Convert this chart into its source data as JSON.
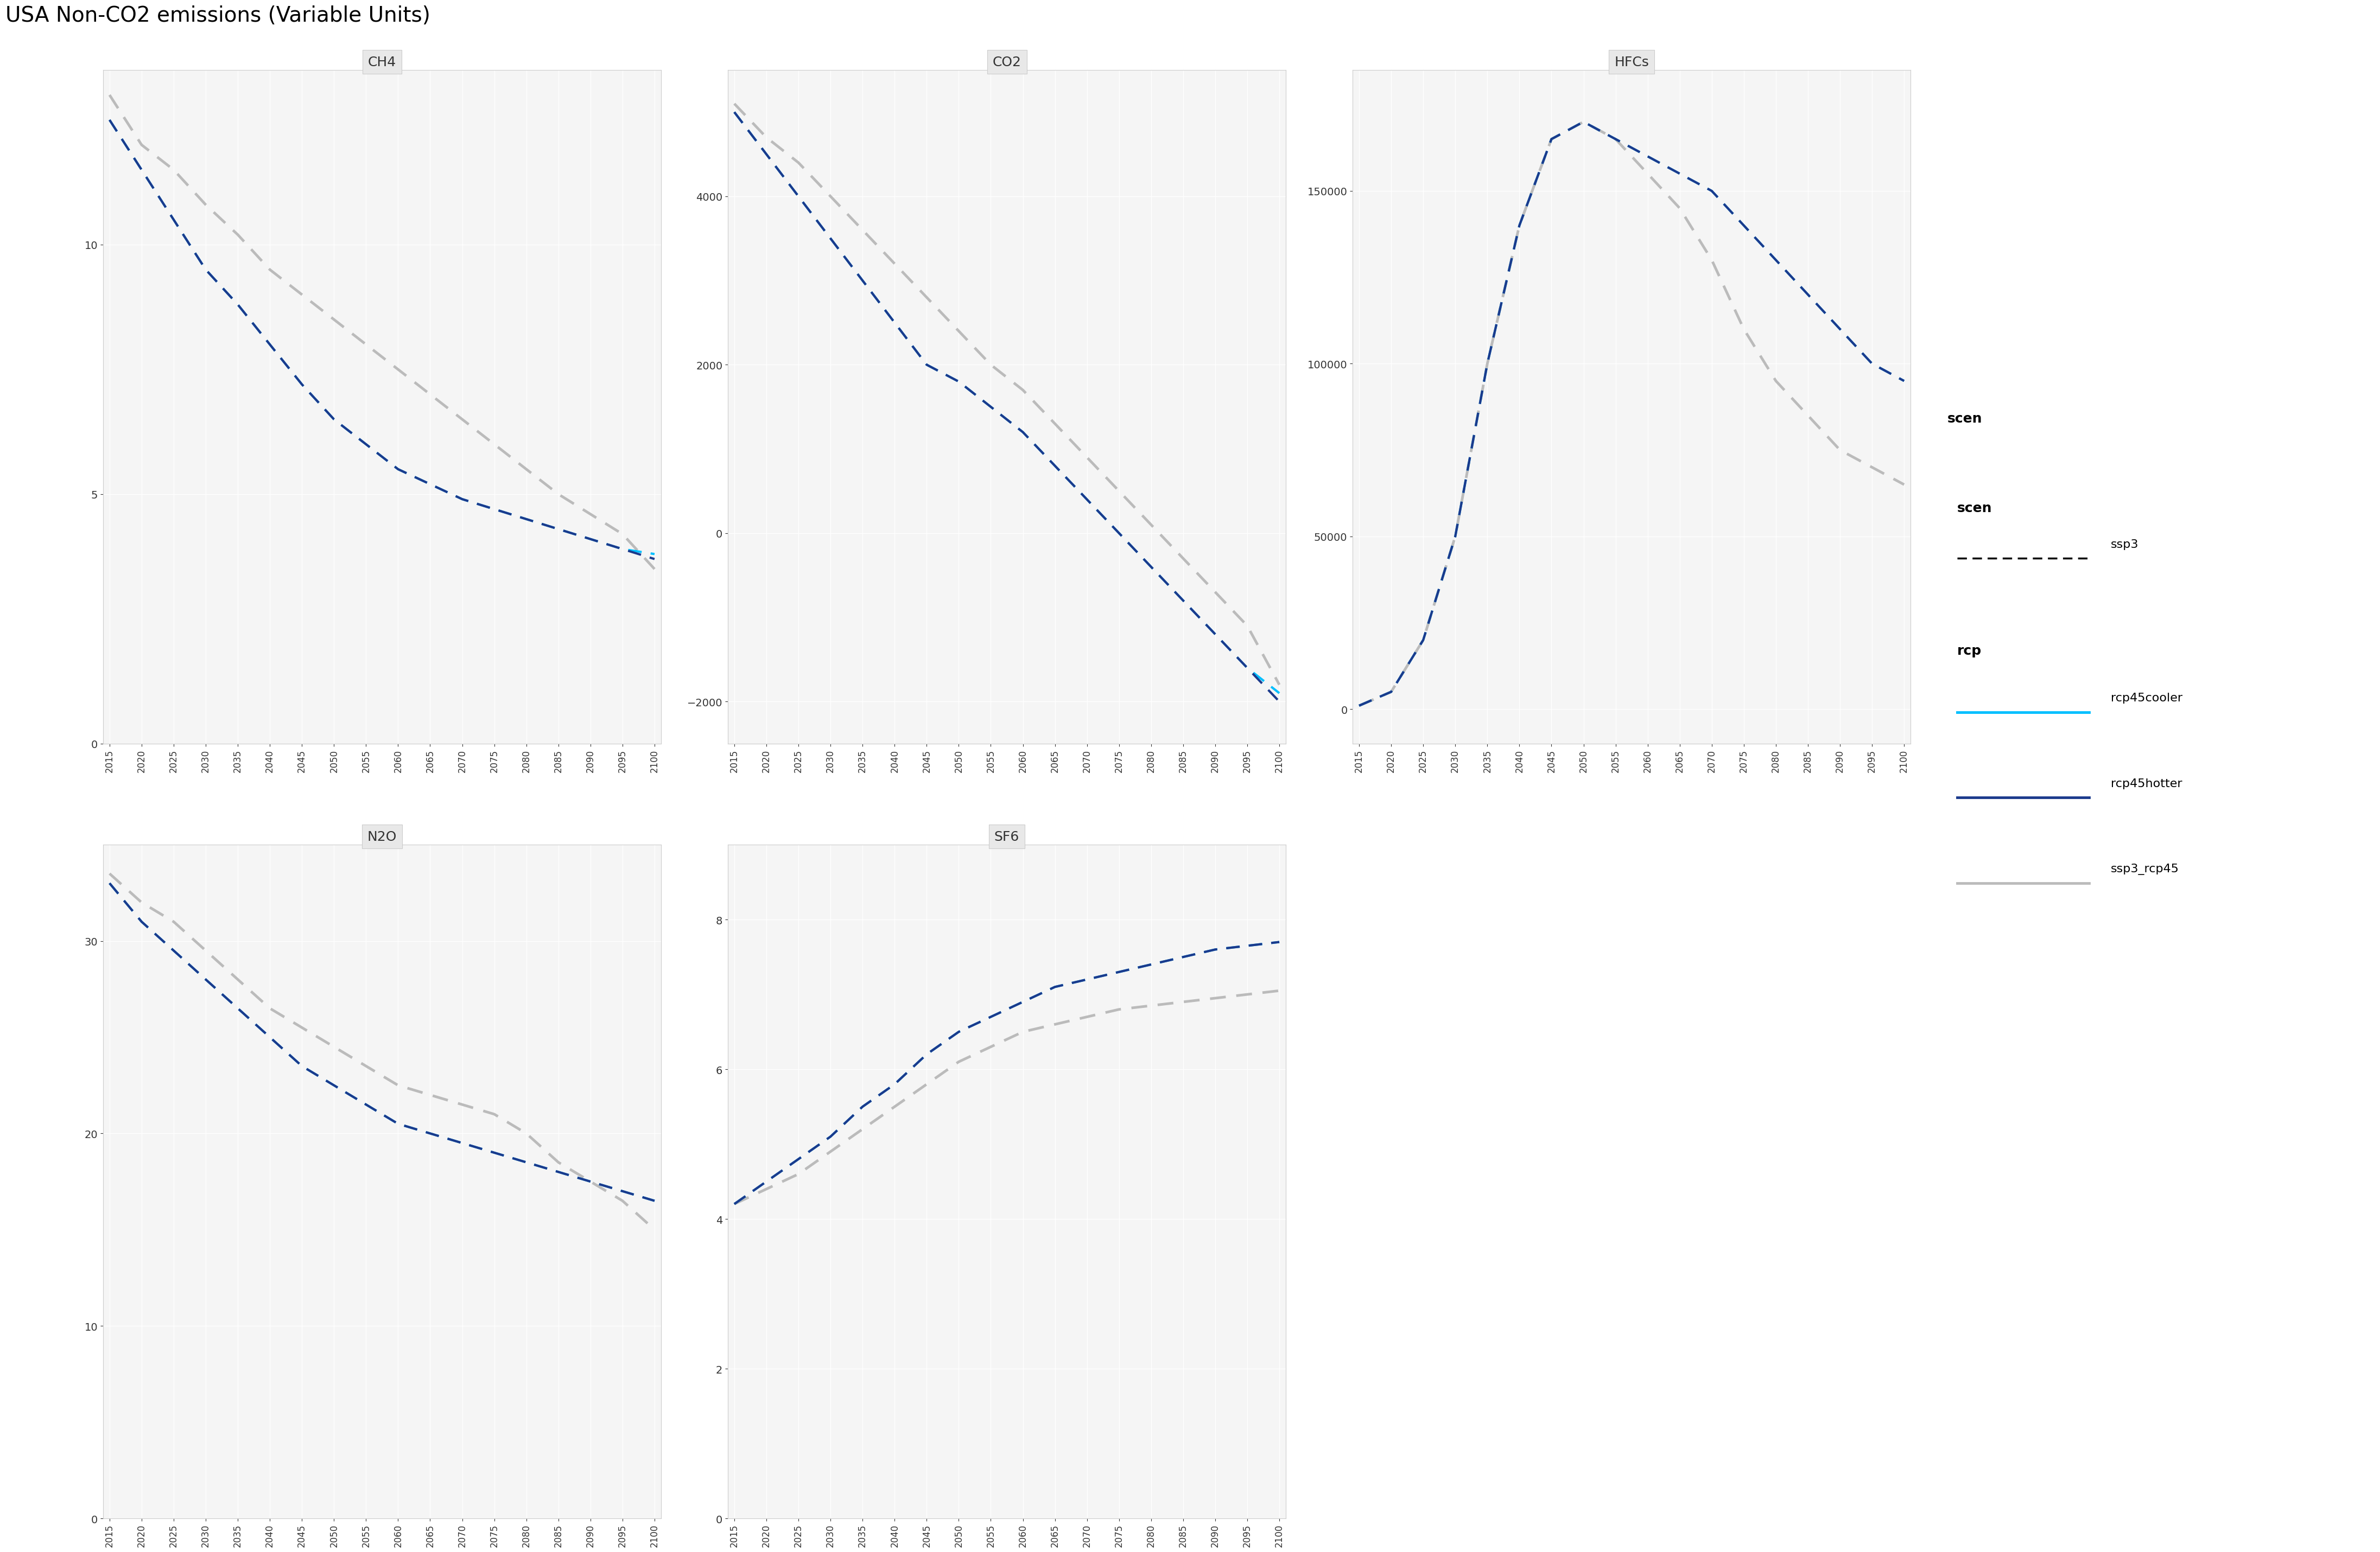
{
  "title": "USA Non-CO2 emissions (Variable Units)",
  "years": [
    2015,
    2020,
    2025,
    2030,
    2035,
    2040,
    2045,
    2050,
    2055,
    2060,
    2065,
    2070,
    2075,
    2080,
    2085,
    2090,
    2095,
    2100
  ],
  "CH4": {
    "rcp45cooler": [
      12.5,
      11.5,
      10.5,
      9.5,
      8.8,
      8.0,
      7.2,
      6.5,
      6.0,
      5.5,
      5.2,
      4.9,
      4.7,
      4.5,
      4.3,
      4.1,
      3.9,
      3.8
    ],
    "rcp45hotter": [
      12.5,
      11.5,
      10.5,
      9.5,
      8.8,
      8.0,
      7.2,
      6.5,
      6.0,
      5.5,
      5.2,
      4.9,
      4.7,
      4.5,
      4.3,
      4.1,
      3.9,
      3.7
    ],
    "ssp3_rcp45": [
      13.0,
      12.0,
      11.5,
      10.8,
      10.2,
      9.5,
      9.0,
      8.5,
      8.0,
      7.5,
      7.0,
      6.5,
      6.0,
      5.5,
      5.0,
      4.6,
      4.2,
      3.5
    ]
  },
  "CO2": {
    "rcp45cooler": [
      5000,
      4500,
      4000,
      3500,
      3000,
      2500,
      2000,
      1800,
      1500,
      1200,
      800,
      400,
      0,
      -400,
      -800,
      -1200,
      -1600,
      -1900
    ],
    "rcp45hotter": [
      5000,
      4500,
      4000,
      3500,
      3000,
      2500,
      2000,
      1800,
      1500,
      1200,
      800,
      400,
      0,
      -400,
      -800,
      -1200,
      -1600,
      -2000
    ],
    "ssp3_rcp45": [
      5100,
      4700,
      4400,
      4000,
      3600,
      3200,
      2800,
      2400,
      2000,
      1700,
      1300,
      900,
      500,
      100,
      -300,
      -700,
      -1100,
      -1800
    ]
  },
  "HFCs": {
    "rcp45cooler": [
      1000,
      5000,
      20000,
      50000,
      100000,
      140000,
      165000,
      170000,
      165000,
      160000,
      155000,
      150000,
      140000,
      130000,
      120000,
      110000,
      100000,
      95000
    ],
    "rcp45hotter": [
      1000,
      5000,
      20000,
      50000,
      100000,
      140000,
      165000,
      170000,
      165000,
      160000,
      155000,
      150000,
      140000,
      130000,
      120000,
      110000,
      100000,
      95000
    ],
    "ssp3_rcp45": [
      1000,
      5000,
      20000,
      50000,
      100000,
      140000,
      165000,
      170000,
      165000,
      155000,
      145000,
      130000,
      110000,
      95000,
      85000,
      75000,
      70000,
      65000
    ]
  },
  "N2O": {
    "rcp45cooler": [
      33.0,
      31.0,
      29.5,
      28.0,
      26.5,
      25.0,
      23.5,
      22.5,
      21.5,
      20.5,
      20.0,
      19.5,
      19.0,
      18.5,
      18.0,
      17.5,
      17.0,
      16.5
    ],
    "rcp45hotter": [
      33.0,
      31.0,
      29.5,
      28.0,
      26.5,
      25.0,
      23.5,
      22.5,
      21.5,
      20.5,
      20.0,
      19.5,
      19.0,
      18.5,
      18.0,
      17.5,
      17.0,
      16.5
    ],
    "ssp3_rcp45": [
      33.5,
      32.0,
      31.0,
      29.5,
      28.0,
      26.5,
      25.5,
      24.5,
      23.5,
      22.5,
      22.0,
      21.5,
      21.0,
      20.0,
      18.5,
      17.5,
      16.5,
      15.0
    ]
  },
  "SF6": {
    "rcp45cooler": [
      4.2,
      4.5,
      4.8,
      5.1,
      5.5,
      5.8,
      6.2,
      6.5,
      6.7,
      6.9,
      7.1,
      7.2,
      7.3,
      7.4,
      7.5,
      7.6,
      7.65,
      7.7
    ],
    "rcp45hotter": [
      4.2,
      4.5,
      4.8,
      5.1,
      5.5,
      5.8,
      6.2,
      6.5,
      6.7,
      6.9,
      7.1,
      7.2,
      7.3,
      7.4,
      7.5,
      7.6,
      7.65,
      7.7
    ],
    "ssp3_rcp45": [
      4.2,
      4.4,
      4.6,
      4.9,
      5.2,
      5.5,
      5.8,
      6.1,
      6.3,
      6.5,
      6.6,
      6.7,
      6.8,
      6.85,
      6.9,
      6.95,
      7.0,
      7.05
    ]
  },
  "colors": {
    "rcp45cooler": "#00BFFF",
    "rcp45hotter": "#1B3A8C",
    "ssp3_rcp45": "#BBBBBB"
  },
  "panel_titles": [
    "CH4",
    "CO2",
    "HFCs",
    "N2O",
    "SF6"
  ],
  "background_color": "#FFFFFF",
  "panel_bg": "#F5F5F5"
}
